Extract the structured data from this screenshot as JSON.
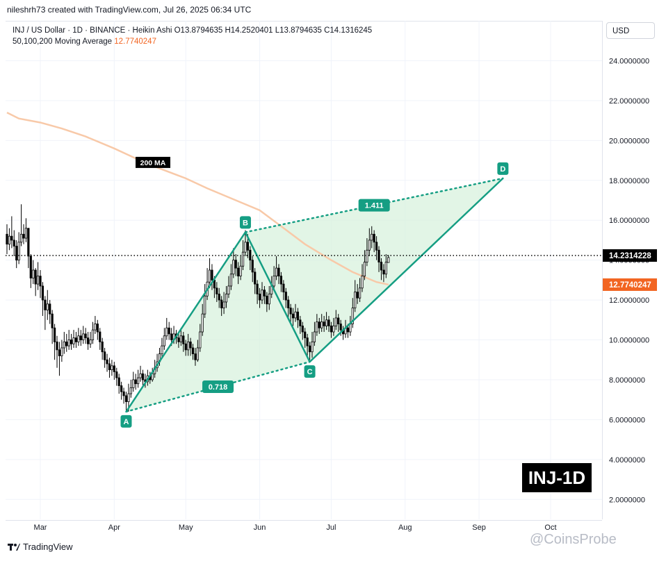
{
  "header": {
    "credit": "nileshrh73 created with TradingView.com, Jul 26, 2025 06:34 UTC",
    "ohlc_line": "INJ / US Dollar · 1D · BINANCE · Heikin Ashi  O13.8794635  H14.2520401  L13.8794635  C14.1316245",
    "ma_line_label": "50,100,200 Moving Average",
    "ma_line_value": "12.7740247"
  },
  "toolbar": {
    "currency": "USD"
  },
  "badge": {
    "ticker": "INJ-1D"
  },
  "footer": {
    "brand": "TradingView",
    "watermark": "@CoinsProbe"
  },
  "colors": {
    "up": "#ffffff",
    "down": "#000000",
    "candle_border": "#000000",
    "ma": "#f8c9a8",
    "pattern": "#159e83",
    "pattern_fill": "#d8f2dd",
    "current_price": "#000000",
    "ma_label": "#f26522"
  },
  "chart_data": {
    "type": "candlestick",
    "symbol": "INJ / US Dollar",
    "interval": "1D",
    "style": "Heikin Ashi",
    "ohlc_last": {
      "open": 13.8794635,
      "high": 14.2520401,
      "low": 13.8794635,
      "close": 14.1316245
    },
    "current_price": 14.2314228,
    "current_price_label": "14.2314228",
    "ma_value_label": "12.7740247",
    "y_axis": {
      "ticks": [
        2,
        4,
        6,
        8,
        10,
        12,
        14,
        16,
        18,
        20,
        22,
        24
      ],
      "tick_labels": [
        "2.0000000",
        "4.0000000",
        "6.0000000",
        "8.0000000",
        "10.0000000",
        "12.0000000",
        "14.0000000",
        "16.0000000",
        "18.0000000",
        "20.0000000",
        "22.0000000",
        "24.0000000"
      ],
      "range": [
        1.0,
        26.0
      ]
    },
    "x_axis": {
      "labels": [
        "Mar",
        "Apr",
        "May",
        "Jun",
        "Jul",
        "Aug",
        "Sep",
        "Oct"
      ],
      "label_dates": [
        "2025-03-01",
        "2025-04-01",
        "2025-05-01",
        "2025-06-01",
        "2025-07-01",
        "2025-08-01",
        "2025-09-01",
        "2025-10-01"
      ],
      "range": [
        "2025-02-15",
        "2025-10-22"
      ]
    },
    "ma200": {
      "label": "200 MA",
      "points": [
        [
          "2025-02-15",
          21.4
        ],
        [
          "2025-02-20",
          21.1
        ],
        [
          "2025-03-01",
          20.9
        ],
        [
          "2025-03-10",
          20.6
        ],
        [
          "2025-03-20",
          20.2
        ],
        [
          "2025-04-01",
          19.6
        ],
        [
          "2025-04-10",
          19.1
        ],
        [
          "2025-04-20",
          18.6
        ],
        [
          "2025-05-01",
          18.1
        ],
        [
          "2025-05-10",
          17.6
        ],
        [
          "2025-05-20",
          17.1
        ],
        [
          "2025-06-01",
          16.5
        ],
        [
          "2025-06-10",
          15.7
        ],
        [
          "2025-06-20",
          14.8
        ],
        [
          "2025-07-01",
          14.0
        ],
        [
          "2025-07-10",
          13.4
        ],
        [
          "2025-07-20",
          12.9
        ],
        [
          "2025-07-25",
          12.77
        ]
      ]
    },
    "candles": [
      [
        "2025-02-15",
        15.3,
        14.8,
        15.8,
        14.3
      ],
      [
        "2025-02-16",
        14.8,
        15.2,
        15.6,
        14.5
      ],
      [
        "2025-02-17",
        15.2,
        15.0,
        16.2,
        14.6
      ],
      [
        "2025-02-18",
        15.0,
        14.7,
        15.5,
        14.2
      ],
      [
        "2025-02-19",
        14.7,
        14.0,
        15.0,
        13.6
      ],
      [
        "2025-02-20",
        14.0,
        14.9,
        15.4,
        13.8
      ],
      [
        "2025-02-21",
        14.9,
        15.3,
        16.8,
        14.7
      ],
      [
        "2025-02-22",
        15.3,
        15.1,
        15.8,
        14.8
      ],
      [
        "2025-02-23",
        15.1,
        15.6,
        16.1,
        14.9
      ],
      [
        "2025-02-24",
        15.6,
        14.2,
        15.6,
        13.6
      ],
      [
        "2025-02-25",
        14.2,
        13.1,
        14.3,
        12.6
      ],
      [
        "2025-02-26",
        13.1,
        13.5,
        14.0,
        12.8
      ],
      [
        "2025-02-27",
        13.5,
        12.8,
        13.6,
        12.2
      ],
      [
        "2025-02-28",
        12.8,
        13.2,
        13.9,
        12.5
      ],
      [
        "2025-03-01",
        13.2,
        12.7,
        13.5,
        12.1
      ],
      [
        "2025-03-02",
        12.7,
        12.0,
        12.9,
        11.2
      ],
      [
        "2025-03-03",
        12.0,
        11.5,
        12.2,
        10.5
      ],
      [
        "2025-03-04",
        11.5,
        11.8,
        12.5,
        11.0
      ],
      [
        "2025-03-05",
        11.8,
        11.3,
        12.0,
        10.8
      ],
      [
        "2025-03-06",
        11.3,
        10.6,
        11.5,
        9.8
      ],
      [
        "2025-03-07",
        10.6,
        9.9,
        10.8,
        9.0
      ],
      [
        "2025-03-08",
        9.9,
        9.5,
        10.2,
        8.6
      ],
      [
        "2025-03-09",
        9.5,
        9.2,
        9.9,
        8.2
      ],
      [
        "2025-03-10",
        9.2,
        9.6,
        10.0,
        8.9
      ],
      [
        "2025-03-11",
        9.6,
        9.9,
        10.4,
        9.3
      ],
      [
        "2025-03-12",
        9.9,
        9.7,
        10.3,
        9.4
      ],
      [
        "2025-03-13",
        9.7,
        10.0,
        10.5,
        9.5
      ],
      [
        "2025-03-14",
        10.0,
        9.8,
        10.3,
        9.5
      ],
      [
        "2025-03-15",
        9.8,
        10.1,
        10.5,
        9.6
      ],
      [
        "2025-03-16",
        10.1,
        9.9,
        10.4,
        9.6
      ],
      [
        "2025-03-17",
        9.9,
        10.2,
        10.6,
        9.7
      ],
      [
        "2025-03-18",
        10.2,
        10.0,
        10.5,
        9.7
      ],
      [
        "2025-03-19",
        10.0,
        10.3,
        10.7,
        9.8
      ],
      [
        "2025-03-20",
        10.3,
        10.1,
        10.6,
        9.8
      ],
      [
        "2025-03-21",
        10.1,
        9.8,
        10.4,
        9.5
      ],
      [
        "2025-03-22",
        9.8,
        10.0,
        10.4,
        9.6
      ],
      [
        "2025-03-23",
        10.0,
        10.5,
        10.9,
        9.8
      ],
      [
        "2025-03-24",
        10.5,
        10.8,
        11.2,
        10.3
      ],
      [
        "2025-03-25",
        10.8,
        10.4,
        11.0,
        10.0
      ],
      [
        "2025-03-26",
        10.4,
        9.9,
        10.6,
        9.5
      ],
      [
        "2025-03-27",
        9.9,
        9.4,
        10.1,
        9.0
      ],
      [
        "2025-03-28",
        9.4,
        9.0,
        9.6,
        8.6
      ],
      [
        "2025-03-29",
        9.0,
        8.8,
        9.3,
        8.4
      ],
      [
        "2025-03-30",
        8.8,
        8.5,
        9.1,
        8.1
      ],
      [
        "2025-03-31",
        8.5,
        8.7,
        9.0,
        8.2
      ],
      [
        "2025-04-01",
        8.7,
        8.4,
        8.9,
        8.0
      ],
      [
        "2025-04-02",
        8.4,
        8.1,
        8.6,
        7.7
      ],
      [
        "2025-04-03",
        8.1,
        7.7,
        8.3,
        7.3
      ],
      [
        "2025-04-04",
        7.7,
        7.4,
        7.9,
        7.0
      ],
      [
        "2025-04-05",
        7.4,
        7.2,
        7.6,
        6.8
      ],
      [
        "2025-04-06",
        7.2,
        6.9,
        7.4,
        6.4
      ],
      [
        "2025-04-07",
        6.9,
        7.3,
        7.8,
        6.4
      ],
      [
        "2025-04-08",
        7.3,
        7.6,
        8.0,
        7.1
      ],
      [
        "2025-04-09",
        7.6,
        8.0,
        8.4,
        7.4
      ],
      [
        "2025-04-10",
        8.0,
        7.8,
        8.3,
        7.5
      ],
      [
        "2025-04-11",
        7.8,
        8.1,
        8.5,
        7.6
      ],
      [
        "2025-04-12",
        8.1,
        8.3,
        8.7,
        7.9
      ],
      [
        "2025-04-13",
        8.3,
        8.0,
        8.5,
        7.7
      ],
      [
        "2025-04-14",
        8.0,
        7.9,
        8.3,
        7.6
      ],
      [
        "2025-04-15",
        7.9,
        8.2,
        8.5,
        7.7
      ],
      [
        "2025-04-16",
        8.2,
        8.0,
        8.4,
        7.8
      ],
      [
        "2025-04-17",
        8.0,
        8.3,
        8.6,
        7.9
      ],
      [
        "2025-04-18",
        8.3,
        8.6,
        9.0,
        8.1
      ],
      [
        "2025-04-19",
        8.6,
        8.9,
        9.3,
        8.4
      ],
      [
        "2025-04-20",
        8.9,
        9.3,
        9.6,
        8.7
      ],
      [
        "2025-04-21",
        9.3,
        9.7,
        10.1,
        9.1
      ],
      [
        "2025-04-22",
        9.7,
        10.2,
        10.6,
        9.5
      ],
      [
        "2025-04-23",
        10.2,
        10.6,
        11.1,
        10.0
      ],
      [
        "2025-04-24",
        10.6,
        10.3,
        10.9,
        10.0
      ],
      [
        "2025-04-25",
        10.3,
        10.0,
        10.6,
        9.7
      ],
      [
        "2025-04-26",
        10.0,
        10.3,
        10.7,
        9.8
      ],
      [
        "2025-04-27",
        10.3,
        10.1,
        10.5,
        9.8
      ],
      [
        "2025-04-28",
        10.1,
        9.9,
        10.4,
        9.6
      ],
      [
        "2025-04-29",
        9.9,
        10.2,
        10.6,
        9.7
      ],
      [
        "2025-04-30",
        10.2,
        9.8,
        10.4,
        9.4
      ],
      [
        "2025-05-01",
        9.8,
        9.5,
        10.0,
        9.2
      ],
      [
        "2025-05-02",
        9.5,
        9.9,
        10.3,
        9.2
      ],
      [
        "2025-05-03",
        9.9,
        9.6,
        10.1,
        9.2
      ],
      [
        "2025-05-04",
        9.6,
        9.3,
        9.8,
        9.0
      ],
      [
        "2025-05-05",
        9.3,
        9.0,
        9.6,
        8.7
      ],
      [
        "2025-05-06",
        9.0,
        9.6,
        10.0,
        8.9
      ],
      [
        "2025-05-07",
        9.6,
        10.4,
        10.8,
        9.4
      ],
      [
        "2025-05-08",
        10.4,
        11.3,
        11.8,
        10.2
      ],
      [
        "2025-05-09",
        11.3,
        12.2,
        12.8,
        11.1
      ],
      [
        "2025-05-10",
        12.2,
        12.9,
        13.6,
        12.0
      ],
      [
        "2025-05-11",
        12.9,
        13.5,
        14.1,
        12.6
      ],
      [
        "2025-05-12",
        13.5,
        13.0,
        13.8,
        12.5
      ],
      [
        "2025-05-13",
        13.0,
        12.6,
        13.2,
        12.1
      ],
      [
        "2025-05-14",
        12.6,
        12.3,
        12.9,
        11.9
      ],
      [
        "2025-05-15",
        12.3,
        12.0,
        12.6,
        11.6
      ],
      [
        "2025-05-16",
        12.0,
        11.6,
        12.2,
        11.2
      ],
      [
        "2025-05-17",
        11.6,
        11.9,
        12.4,
        11.3
      ],
      [
        "2025-05-18",
        11.9,
        12.3,
        12.7,
        11.6
      ],
      [
        "2025-05-19",
        12.3,
        12.7,
        13.2,
        12.1
      ],
      [
        "2025-05-20",
        12.7,
        13.3,
        13.8,
        12.5
      ],
      [
        "2025-05-21",
        13.3,
        14.0,
        14.6,
        13.1
      ],
      [
        "2025-05-22",
        14.0,
        13.6,
        14.3,
        13.2
      ],
      [
        "2025-05-23",
        13.6,
        13.2,
        13.9,
        12.8
      ],
      [
        "2025-05-24",
        13.2,
        13.7,
        14.2,
        13.0
      ],
      [
        "2025-05-25",
        13.7,
        14.4,
        15.0,
        13.5
      ],
      [
        "2025-05-26",
        14.4,
        14.9,
        15.5,
        14.2
      ],
      [
        "2025-05-27",
        14.9,
        14.5,
        15.3,
        14.1
      ],
      [
        "2025-05-28",
        14.5,
        14.0,
        14.7,
        13.5
      ],
      [
        "2025-05-29",
        14.0,
        13.4,
        14.2,
        12.9
      ],
      [
        "2025-05-30",
        13.4,
        12.8,
        13.6,
        12.3
      ],
      [
        "2025-05-31",
        12.8,
        12.3,
        13.0,
        11.8
      ],
      [
        "2025-06-01",
        12.3,
        12.0,
        12.6,
        11.6
      ],
      [
        "2025-06-02",
        12.0,
        12.5,
        12.9,
        11.8
      ],
      [
        "2025-06-03",
        12.5,
        12.2,
        12.7,
        11.8
      ],
      [
        "2025-06-04",
        12.2,
        11.8,
        12.4,
        11.4
      ],
      [
        "2025-06-05",
        11.8,
        12.3,
        12.7,
        11.5
      ],
      [
        "2025-06-06",
        12.3,
        12.7,
        13.2,
        12.1
      ],
      [
        "2025-06-07",
        12.7,
        13.2,
        13.7,
        12.5
      ],
      [
        "2025-06-08",
        13.2,
        13.6,
        14.2,
        13.0
      ],
      [
        "2025-06-09",
        13.6,
        13.2,
        13.8,
        12.8
      ],
      [
        "2025-06-10",
        13.2,
        12.8,
        13.4,
        12.4
      ],
      [
        "2025-06-11",
        12.8,
        12.4,
        13.0,
        12.0
      ],
      [
        "2025-06-12",
        12.4,
        12.0,
        12.6,
        11.6
      ],
      [
        "2025-06-13",
        12.0,
        11.6,
        12.2,
        11.1
      ],
      [
        "2025-06-14",
        11.6,
        11.3,
        11.8,
        10.9
      ],
      [
        "2025-06-15",
        11.3,
        11.1,
        11.6,
        10.7
      ],
      [
        "2025-06-16",
        11.1,
        11.4,
        11.8,
        10.9
      ],
      [
        "2025-06-17",
        11.4,
        11.0,
        11.6,
        10.6
      ],
      [
        "2025-06-18",
        11.0,
        10.7,
        11.2,
        10.3
      ],
      [
        "2025-06-19",
        10.7,
        10.4,
        10.9,
        10.0
      ],
      [
        "2025-06-20",
        10.4,
        10.1,
        10.6,
        9.6
      ],
      [
        "2025-06-21",
        10.1,
        9.7,
        10.3,
        9.2
      ],
      [
        "2025-06-22",
        9.7,
        9.4,
        9.9,
        9.0
      ],
      [
        "2025-06-23",
        9.4,
        9.9,
        10.4,
        9.1
      ],
      [
        "2025-06-24",
        9.9,
        10.4,
        10.9,
        9.7
      ],
      [
        "2025-06-25",
        10.4,
        10.9,
        11.3,
        10.2
      ],
      [
        "2025-06-26",
        10.9,
        10.6,
        11.1,
        10.3
      ],
      [
        "2025-06-27",
        10.6,
        10.9,
        11.3,
        10.4
      ],
      [
        "2025-06-28",
        10.9,
        10.7,
        11.2,
        10.4
      ],
      [
        "2025-06-29",
        10.7,
        11.0,
        11.4,
        10.5
      ],
      [
        "2025-06-30",
        11.0,
        10.7,
        11.2,
        10.4
      ],
      [
        "2025-07-01",
        10.7,
        10.4,
        10.9,
        10.1
      ],
      [
        "2025-07-02",
        10.4,
        10.7,
        11.1,
        10.2
      ],
      [
        "2025-07-03",
        10.7,
        11.1,
        11.5,
        10.5
      ],
      [
        "2025-07-04",
        11.1,
        10.8,
        11.3,
        10.4
      ],
      [
        "2025-07-05",
        10.8,
        10.5,
        11.0,
        10.2
      ],
      [
        "2025-07-06",
        10.5,
        10.3,
        10.7,
        10.0
      ],
      [
        "2025-07-07",
        10.3,
        10.6,
        11.0,
        10.1
      ],
      [
        "2025-07-08",
        10.6,
        10.4,
        10.8,
        10.1
      ],
      [
        "2025-07-09",
        10.4,
        10.8,
        11.2,
        10.2
      ],
      [
        "2025-07-10",
        10.8,
        11.6,
        12.1,
        10.6
      ],
      [
        "2025-07-11",
        11.6,
        12.4,
        13.0,
        11.4
      ],
      [
        "2025-07-12",
        12.4,
        12.1,
        12.8,
        11.8
      ],
      [
        "2025-07-13",
        12.1,
        12.6,
        13.1,
        11.9
      ],
      [
        "2025-07-14",
        12.6,
        13.2,
        13.8,
        12.4
      ],
      [
        "2025-07-15",
        13.2,
        13.9,
        14.5,
        13.0
      ],
      [
        "2025-07-16",
        13.9,
        14.5,
        15.1,
        13.7
      ],
      [
        "2025-07-17",
        14.5,
        15.0,
        15.6,
        14.2
      ],
      [
        "2025-07-18",
        15.0,
        15.3,
        15.7,
        14.6
      ],
      [
        "2025-07-19",
        15.3,
        14.9,
        15.5,
        14.4
      ],
      [
        "2025-07-20",
        14.9,
        14.5,
        15.2,
        14.0
      ],
      [
        "2025-07-21",
        14.5,
        13.9,
        14.7,
        13.4
      ],
      [
        "2025-07-22",
        13.9,
        13.5,
        14.1,
        13.0
      ],
      [
        "2025-07-23",
        13.5,
        13.3,
        13.8,
        12.9
      ],
      [
        "2025-07-24",
        13.3,
        13.9,
        14.3,
        13.1
      ],
      [
        "2025-07-25",
        13.88,
        14.13,
        14.25,
        13.88
      ]
    ],
    "harmonic_pattern": {
      "points": [
        {
          "label": "A",
          "date": "2025-04-06",
          "price": 6.4
        },
        {
          "label": "B",
          "date": "2025-05-26",
          "price": 15.4
        },
        {
          "label": "C",
          "date": "2025-06-22",
          "price": 8.9
        },
        {
          "label": "D",
          "date": "2025-09-11",
          "price": 18.1
        }
      ],
      "ratios": [
        {
          "label": "0.718",
          "between": [
            "A",
            "C"
          ]
        },
        {
          "label": "1.411",
          "between": [
            "B",
            "D"
          ]
        }
      ]
    }
  }
}
